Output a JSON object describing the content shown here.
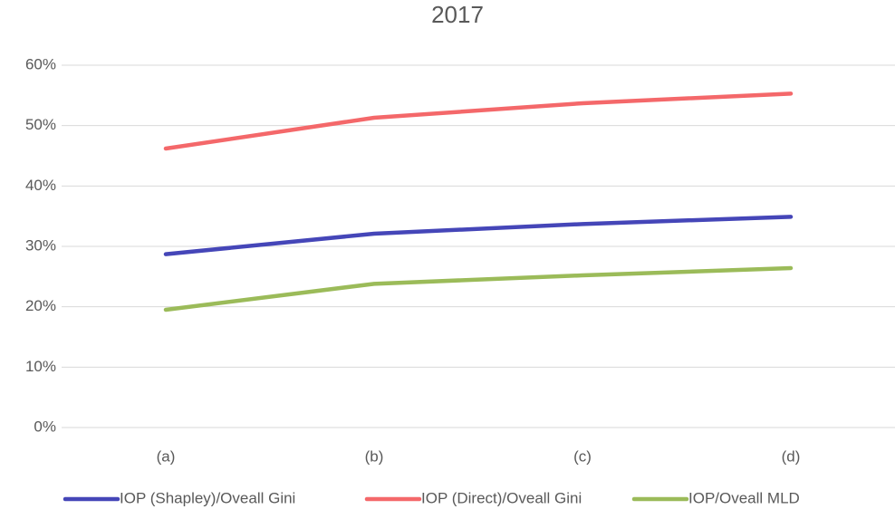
{
  "chart_data": {
    "type": "line",
    "title": "2017",
    "categories": [
      "(a)",
      "(b)",
      "(c)",
      "(d)"
    ],
    "series": [
      {
        "name": "IOP (Shapley)/Oveall Gini",
        "color": "#4546b8",
        "values": [
          28.7,
          32.1,
          33.7,
          34.9
        ]
      },
      {
        "name": "IOP (Direct)/Oveall Gini",
        "color": "#f4686a",
        "values": [
          46.2,
          51.3,
          53.7,
          55.3
        ]
      },
      {
        "name": "IOP/Oveall MLD",
        "color": "#9bbb59",
        "values": [
          19.5,
          23.8,
          25.2,
          26.4
        ]
      }
    ],
    "ylim": [
      0,
      60
    ],
    "yticks": [
      {
        "value": 0,
        "label": "0%"
      },
      {
        "value": 10,
        "label": "10%"
      },
      {
        "value": 20,
        "label": "20%"
      },
      {
        "value": 30,
        "label": "30%"
      },
      {
        "value": 40,
        "label": "40%"
      },
      {
        "value": 50,
        "label": "50%"
      },
      {
        "value": 60,
        "label": "60%"
      }
    ],
    "grid": true,
    "legend": "bottom"
  }
}
